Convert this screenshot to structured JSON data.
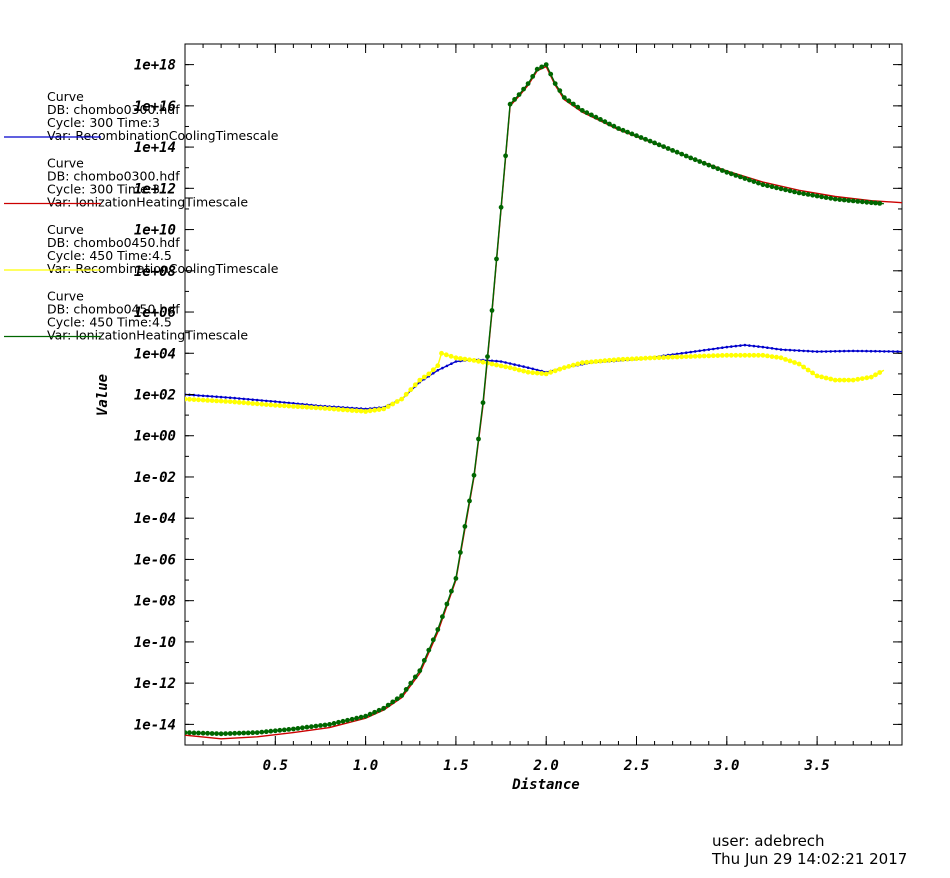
{
  "chart_data": {
    "type": "line",
    "xlabel": "Distance",
    "ylabel": "Value",
    "yscale": "log",
    "xlim": [
      0.0,
      3.97
    ],
    "ylim": [
      1e-15,
      1e+19
    ],
    "x_ticks": [
      0.5,
      1.0,
      1.5,
      2.0,
      2.5,
      3.0,
      3.5
    ],
    "x_tick_labels": [
      "0.5",
      "1.0",
      "1.5",
      "2.0",
      "2.5",
      "3.0",
      "3.5"
    ],
    "y_ticks": [
      1e-14,
      1e-12,
      1e-10,
      1e-08,
      1e-06,
      0.0001,
      0.01,
      1.0,
      100.0,
      10000.0,
      1000000.0,
      100000000.0,
      10000000000.0,
      1000000000000.0,
      100000000000000.0,
      1e+16,
      1e+18
    ],
    "y_tick_labels": [
      "1e-14",
      "1e-12",
      "1e-10",
      "1e-08",
      "1e-06",
      "1e-04",
      "1e-02",
      "1e+00",
      "1e+02",
      "1e+04",
      "1e+06",
      "1e+08",
      "1e+10",
      "1e+12",
      "1e+14",
      "1e+16",
      "1e+18"
    ],
    "grid": false,
    "legend_position": "left",
    "series": [
      {
        "legend": [
          "Curve",
          "DB: chombo0300.hdf",
          "Cycle: 300      Time:3",
          "Var: RecombinationCoolingTimescale"
        ],
        "color": "#0000cc",
        "marker": "small",
        "points": [
          [
            0.0,
            100
          ],
          [
            0.25,
            70
          ],
          [
            0.5,
            45
          ],
          [
            0.75,
            28
          ],
          [
            1.0,
            20
          ],
          [
            1.1,
            24
          ],
          [
            1.2,
            60
          ],
          [
            1.3,
            400
          ],
          [
            1.4,
            1500
          ],
          [
            1.5,
            4000
          ],
          [
            1.6,
            5000
          ],
          [
            1.75,
            4000
          ],
          [
            1.9,
            2000
          ],
          [
            2.0,
            1200
          ],
          [
            2.1,
            2000
          ],
          [
            2.25,
            3500
          ],
          [
            2.5,
            5000
          ],
          [
            2.75,
            10000
          ],
          [
            2.9,
            15000
          ],
          [
            3.0,
            20000
          ],
          [
            3.1,
            25000
          ],
          [
            3.2,
            20000
          ],
          [
            3.3,
            15000
          ],
          [
            3.5,
            12000
          ],
          [
            3.7,
            13000
          ],
          [
            3.97,
            12000
          ]
        ]
      },
      {
        "legend": [
          "Curve",
          "DB: chombo0300.hdf",
          "Cycle: 300      Time:3",
          "Var: IonizationHeatingTimescale"
        ],
        "color": "#cc0000",
        "marker": "none",
        "points": [
          [
            0.0,
            3e-15
          ],
          [
            0.2,
            2e-15
          ],
          [
            0.4,
            2.5e-15
          ],
          [
            0.6,
            4e-15
          ],
          [
            0.8,
            7e-15
          ],
          [
            1.0,
            2e-14
          ],
          [
            1.1,
            5e-14
          ],
          [
            1.2,
            2e-13
          ],
          [
            1.3,
            3e-12
          ],
          [
            1.4,
            3e-10
          ],
          [
            1.5,
            1e-07
          ],
          [
            1.55,
            3e-05
          ],
          [
            1.6,
            0.01
          ],
          [
            1.65,
            30
          ],
          [
            1.7,
            1000000.0
          ],
          [
            1.75,
            100000000000.0
          ],
          [
            1.8,
            1e+16
          ],
          [
            1.85,
            3e+16
          ],
          [
            1.9,
            1e+17
          ],
          [
            1.95,
            5e+17
          ],
          [
            2.0,
            8e+17
          ],
          [
            2.05,
            1e+17
          ],
          [
            2.1,
            2e+16
          ],
          [
            2.2,
            5000000000000000.0
          ],
          [
            2.4,
            700000000000000.0
          ],
          [
            2.6,
            150000000000000.0
          ],
          [
            2.8,
            30000000000000.0
          ],
          [
            3.0,
            7000000000000.0
          ],
          [
            3.2,
            2000000000000.0
          ],
          [
            3.4,
            800000000000.0
          ],
          [
            3.6,
            400000000000.0
          ],
          [
            3.8,
            250000000000.0
          ],
          [
            3.97,
            200000000000.0
          ]
        ]
      },
      {
        "legend": [
          "Curve",
          "DB: chombo0450.hdf",
          "Cycle: 450      Time:4.5",
          "Var: RecombinationCoolingTimescale"
        ],
        "color": "#ffff00",
        "marker": "dot",
        "points": [
          [
            0.0,
            60
          ],
          [
            0.25,
            45
          ],
          [
            0.5,
            30
          ],
          [
            0.75,
            22
          ],
          [
            1.0,
            15
          ],
          [
            1.1,
            20
          ],
          [
            1.2,
            60
          ],
          [
            1.3,
            500
          ],
          [
            1.35,
            1000
          ],
          [
            1.4,
            2500
          ],
          [
            1.42,
            10000
          ],
          [
            1.5,
            6000
          ],
          [
            1.6,
            4500
          ],
          [
            1.7,
            3000
          ],
          [
            1.8,
            2000
          ],
          [
            1.9,
            1200
          ],
          [
            2.0,
            1000
          ],
          [
            2.1,
            2000
          ],
          [
            2.2,
            3500
          ],
          [
            2.4,
            5000
          ],
          [
            2.6,
            6000
          ],
          [
            2.8,
            7000
          ],
          [
            3.0,
            8000
          ],
          [
            3.2,
            8000
          ],
          [
            3.3,
            6000
          ],
          [
            3.4,
            3000
          ],
          [
            3.5,
            800
          ],
          [
            3.6,
            500
          ],
          [
            3.7,
            500
          ],
          [
            3.8,
            700
          ],
          [
            3.87,
            1500
          ]
        ]
      },
      {
        "legend": [
          "Curve",
          "DB: chombo0450.hdf",
          "Cycle: 450      Time:4.5",
          "Var: IonizationHeatingTimescale"
        ],
        "color": "#006600",
        "marker": "dot",
        "points": [
          [
            0.0,
            4e-15
          ],
          [
            0.2,
            3.5e-15
          ],
          [
            0.4,
            4e-15
          ],
          [
            0.6,
            6e-15
          ],
          [
            0.8,
            1e-14
          ],
          [
            1.0,
            2.5e-14
          ],
          [
            1.1,
            6e-14
          ],
          [
            1.2,
            2.5e-13
          ],
          [
            1.3,
            4e-12
          ],
          [
            1.4,
            4e-10
          ],
          [
            1.5,
            1.2e-07
          ],
          [
            1.55,
            4e-05
          ],
          [
            1.6,
            0.012
          ],
          [
            1.65,
            40
          ],
          [
            1.7,
            1200000.0
          ],
          [
            1.75,
            120000000000.0
          ],
          [
            1.8,
            1.2e+16
          ],
          [
            1.85,
            3.5e+16
          ],
          [
            1.9,
            1.2e+17
          ],
          [
            1.95,
            6e+17
          ],
          [
            2.0,
            1e+18
          ],
          [
            2.05,
            1.2e+17
          ],
          [
            2.1,
            2.5e+16
          ],
          [
            2.2,
            6000000000000000.0
          ],
          [
            2.4,
            800000000000000.0
          ],
          [
            2.6,
            160000000000000.0
          ],
          [
            2.8,
            30000000000000.0
          ],
          [
            3.0,
            6000000000000.0
          ],
          [
            3.2,
            1500000000000.0
          ],
          [
            3.4,
            600000000000.0
          ],
          [
            3.6,
            300000000000.0
          ],
          [
            3.8,
            200000000000.0
          ],
          [
            3.87,
            180000000000.0
          ]
        ]
      }
    ]
  },
  "footer": {
    "user": "user: adebrech",
    "timestamp": "Thu Jun 29 14:02:21 2017"
  }
}
